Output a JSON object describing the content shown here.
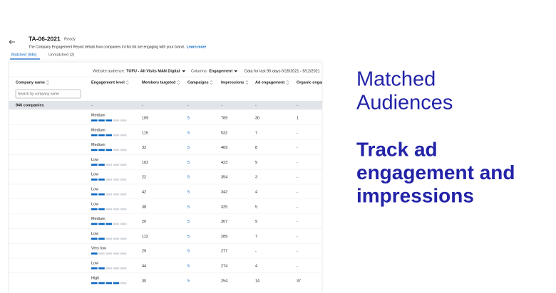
{
  "header": {
    "title": "TA-06-2021",
    "status": "Ready",
    "description": "The Company Engagement Report details how companies in this list are engaging with your brand.",
    "link": "Learn more"
  },
  "tabs": [
    "Matched (946)",
    "Unmatched (2)"
  ],
  "filters": {
    "audience_label": "Website audience:",
    "audience": "TOFU - All Visits MAN Digital",
    "columns_label": "Columns:",
    "columns": "Engagement",
    "date_range": "Data for last 90 days 6/15/2021 - 9/12/2021"
  },
  "table": {
    "columns": [
      "Company name",
      "Engagement level",
      "Members targeted",
      "Campaigns",
      "Impressions",
      "Ad engagement",
      "Organic engagement"
    ],
    "search_placeholder": "Search by company name",
    "summary": [
      "946 companies",
      "-",
      "-",
      "-",
      "-",
      "-",
      "-"
    ],
    "rows": [
      [
        "Medium",
        109,
        5,
        789,
        30,
        1
      ],
      [
        "Medium",
        115,
        5,
        532,
        7,
        "-"
      ],
      [
        "Medium",
        32,
        5,
        469,
        8,
        "-"
      ],
      [
        "Low",
        102,
        5,
        423,
        9,
        "-"
      ],
      [
        "Low",
        22,
        5,
        354,
        3,
        "-"
      ],
      [
        "Low",
        42,
        5,
        342,
        4,
        "-"
      ],
      [
        "Low",
        38,
        5,
        325,
        5,
        "-"
      ],
      [
        "Medium",
        20,
        5,
        307,
        9,
        "-"
      ],
      [
        "Low",
        112,
        5,
        289,
        7,
        "-"
      ],
      [
        "Very low",
        29,
        5,
        277,
        "-",
        "-"
      ],
      [
        "Low",
        44,
        5,
        274,
        4,
        "-"
      ],
      [
        "High",
        30,
        5,
        254,
        14,
        37
      ]
    ],
    "filled": [
      3,
      3,
      3,
      2,
      2,
      2,
      2,
      3,
      2,
      1,
      2,
      4
    ]
  },
  "side": {
    "heading": [
      "Matched",
      "Audiences"
    ],
    "tagline": [
      "Track ad",
      "engagement and",
      "impressions"
    ]
  }
}
